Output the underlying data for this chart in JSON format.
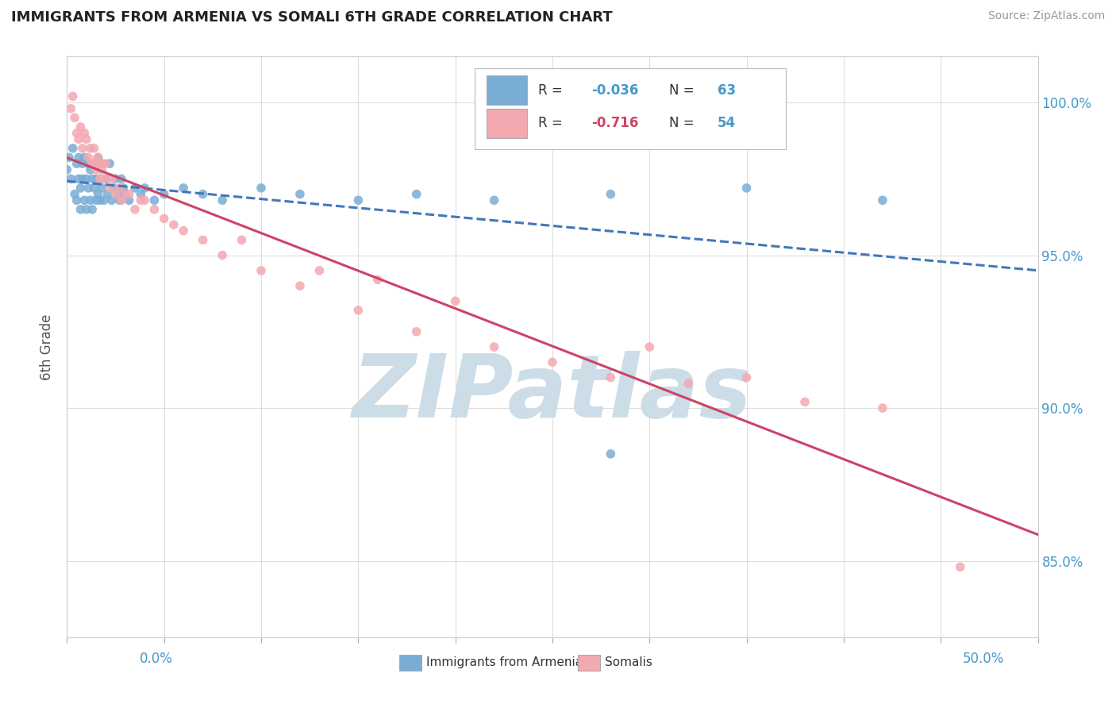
{
  "title": "IMMIGRANTS FROM ARMENIA VS SOMALI 6TH GRADE CORRELATION CHART",
  "source": "Source: ZipAtlas.com",
  "ylabel": "6th Grade",
  "armenia_R": -0.036,
  "armenia_N": 63,
  "somali_R": -0.716,
  "somali_N": 54,
  "armenia_color": "#7aadd4",
  "somali_color": "#f4a8b0",
  "armenia_line_color": "#4477bb",
  "somali_line_color": "#cc4466",
  "watermark": "ZIPatlas",
  "watermark_color": "#ccdde8",
  "bg_color": "#ffffff",
  "grid_color": "#dddddd",
  "xmin": 0.0,
  "xmax": 0.5,
  "ymin": 82.5,
  "ymax": 101.5,
  "ytick_positions": [
    85.0,
    90.0,
    95.0,
    100.0
  ],
  "ytick_labels": [
    "85.0%",
    "90.0%",
    "95.0%",
    "100.0%"
  ],
  "armenia_scatter_x": [
    0.0,
    0.001,
    0.002,
    0.003,
    0.004,
    0.005,
    0.005,
    0.006,
    0.006,
    0.007,
    0.007,
    0.008,
    0.008,
    0.009,
    0.009,
    0.01,
    0.01,
    0.011,
    0.011,
    0.012,
    0.012,
    0.013,
    0.013,
    0.014,
    0.014,
    0.015,
    0.015,
    0.016,
    0.016,
    0.017,
    0.017,
    0.018,
    0.018,
    0.019,
    0.02,
    0.021,
    0.022,
    0.023,
    0.024,
    0.025,
    0.026,
    0.027,
    0.028,
    0.029,
    0.03,
    0.032,
    0.035,
    0.038,
    0.04,
    0.045,
    0.05,
    0.06,
    0.07,
    0.08,
    0.1,
    0.12,
    0.15,
    0.18,
    0.22,
    0.28,
    0.35,
    0.42,
    0.28
  ],
  "armenia_scatter_y": [
    97.8,
    98.2,
    97.5,
    98.5,
    97.0,
    98.0,
    96.8,
    97.5,
    98.2,
    97.2,
    96.5,
    98.0,
    97.5,
    96.8,
    98.2,
    97.5,
    96.5,
    98.0,
    97.2,
    96.8,
    97.8,
    97.5,
    96.5,
    98.0,
    97.2,
    96.8,
    97.5,
    98.2,
    97.0,
    96.8,
    97.5,
    98.0,
    97.2,
    96.8,
    97.5,
    97.0,
    98.0,
    96.8,
    97.2,
    97.5,
    97.0,
    96.8,
    97.5,
    97.2,
    97.0,
    96.8,
    97.2,
    97.0,
    97.2,
    96.8,
    97.0,
    97.2,
    97.0,
    96.8,
    97.2,
    97.0,
    96.8,
    97.0,
    96.8,
    97.0,
    97.2,
    96.8,
    88.5
  ],
  "somali_scatter_x": [
    0.002,
    0.003,
    0.004,
    0.005,
    0.006,
    0.007,
    0.008,
    0.009,
    0.01,
    0.011,
    0.012,
    0.013,
    0.014,
    0.015,
    0.016,
    0.017,
    0.018,
    0.019,
    0.02,
    0.022,
    0.025,
    0.028,
    0.03,
    0.035,
    0.04,
    0.05,
    0.06,
    0.07,
    0.08,
    0.1,
    0.12,
    0.15,
    0.18,
    0.22,
    0.25,
    0.28,
    0.32,
    0.38,
    0.42,
    0.46,
    0.35,
    0.3,
    0.2,
    0.16,
    0.13,
    0.09,
    0.055,
    0.045,
    0.038,
    0.032,
    0.027,
    0.023,
    0.018,
    0.014
  ],
  "somali_scatter_y": [
    99.8,
    100.2,
    99.5,
    99.0,
    98.8,
    99.2,
    98.5,
    99.0,
    98.8,
    98.2,
    98.5,
    98.0,
    98.5,
    97.8,
    98.2,
    97.5,
    98.0,
    97.5,
    98.0,
    97.2,
    97.0,
    96.8,
    97.0,
    96.5,
    96.8,
    96.2,
    95.8,
    95.5,
    95.0,
    94.5,
    94.0,
    93.2,
    92.5,
    92.0,
    91.5,
    91.0,
    90.8,
    90.2,
    90.0,
    84.8,
    91.0,
    92.0,
    93.5,
    94.2,
    94.5,
    95.5,
    96.0,
    96.5,
    96.8,
    97.0,
    97.2,
    97.5,
    97.8,
    98.0
  ]
}
